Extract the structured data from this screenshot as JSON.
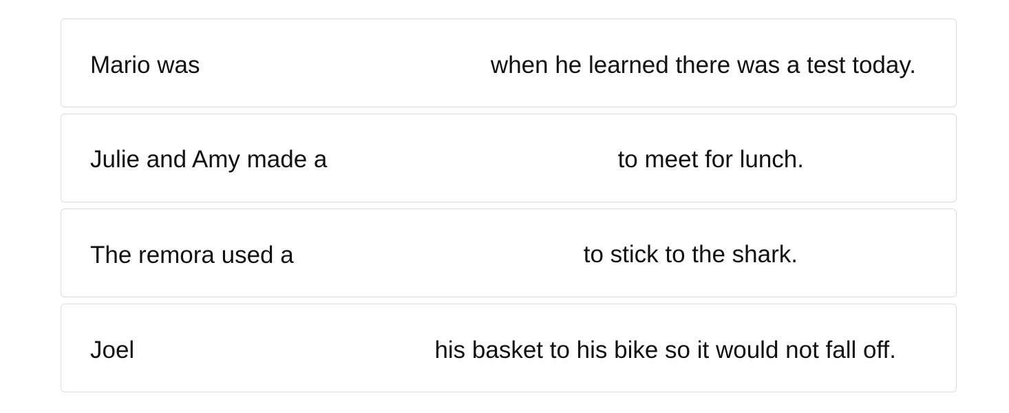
{
  "sentences": [
    {
      "prefix": "Mario was",
      "suffix": "when he learned there was a test today."
    },
    {
      "prefix": "Julie and Amy made a",
      "suffix": "to meet for lunch."
    },
    {
      "prefix": "The remora used a",
      "suffix": "to stick to the shark."
    },
    {
      "prefix": "Joel",
      "suffix": "his basket to his bike so it would not fall off."
    }
  ]
}
